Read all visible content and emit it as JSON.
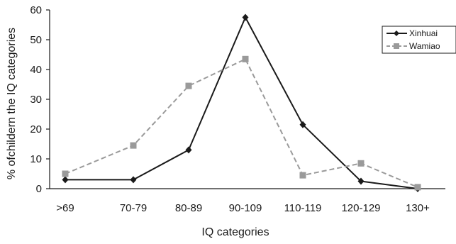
{
  "chart_data": {
    "type": "line",
    "categories": [
      ">69",
      "70-79",
      "80-89",
      "90-109",
      "110-119",
      "120-129",
      "130+"
    ],
    "series": [
      {
        "name": "Xinhuai",
        "values": [
          3,
          3,
          13,
          57.5,
          21.5,
          2.5,
          0
        ],
        "color": "#1a1a1a",
        "line": "solid",
        "marker": "diamond"
      },
      {
        "name": "Wamiao",
        "values": [
          5,
          14.5,
          34.5,
          43.5,
          4.5,
          8.5,
          0.5
        ],
        "color": "#9a9a9a",
        "line": "dashed",
        "marker": "square"
      }
    ],
    "title": "",
    "xlabel": "IQ categories",
    "ylabel": "% ofchildern the IQ categories",
    "ylim": [
      0,
      60
    ],
    "yticks": [
      0,
      10,
      20,
      30,
      40,
      50,
      60
    ],
    "grid": false,
    "legend": "top-right"
  }
}
